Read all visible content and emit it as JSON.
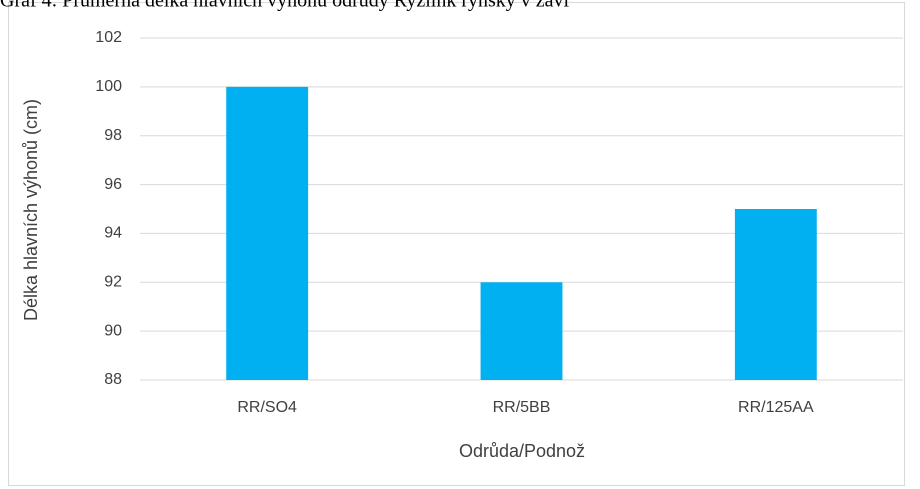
{
  "chart_data": {
    "type": "bar",
    "title": "Graf 4: Průměrná délka hlavních výhonů odrůdy Ryzlink rýnský v závi",
    "xlabel": "Odrůda/Podnož",
    "ylabel": "Délka hlavních výhonů (cm)",
    "categories": [
      "RR/SO4",
      "RR/5BB",
      "RR/125AA"
    ],
    "values": [
      100,
      92,
      95
    ],
    "color": "#00b0f0",
    "ylim": [
      88,
      102
    ],
    "yticks": [
      88,
      90,
      92,
      94,
      96,
      98,
      100,
      102
    ],
    "grid": true
  }
}
